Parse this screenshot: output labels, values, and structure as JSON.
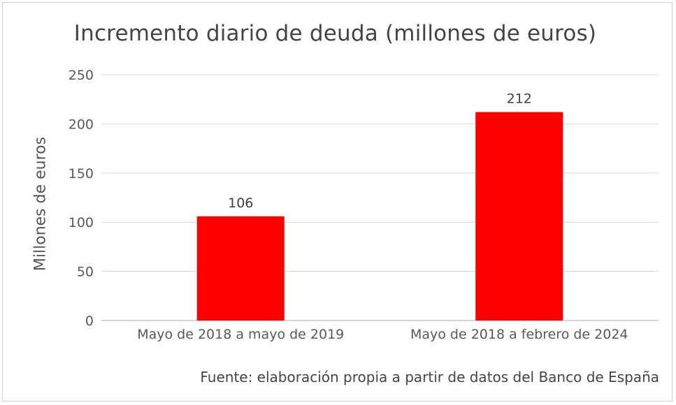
{
  "chart_data": {
    "type": "bar",
    "title": "Incremento diario de deuda (millones de euros)",
    "ylabel": "Millones de euros",
    "xlabel": "",
    "categories": [
      "Mayo de 2018 a mayo de 2019",
      "Mayo de 2018 a febrero de 2024"
    ],
    "values": [
      106,
      212
    ],
    "data_labels": [
      "106",
      "212"
    ],
    "ylim": [
      0,
      250
    ],
    "yticks": [
      0,
      50,
      100,
      150,
      200,
      250
    ],
    "grid": true,
    "legend": "none",
    "bar_color": "#ff0000",
    "source": "Fuente: elaboración propia a partir de datos del Banco de España"
  }
}
